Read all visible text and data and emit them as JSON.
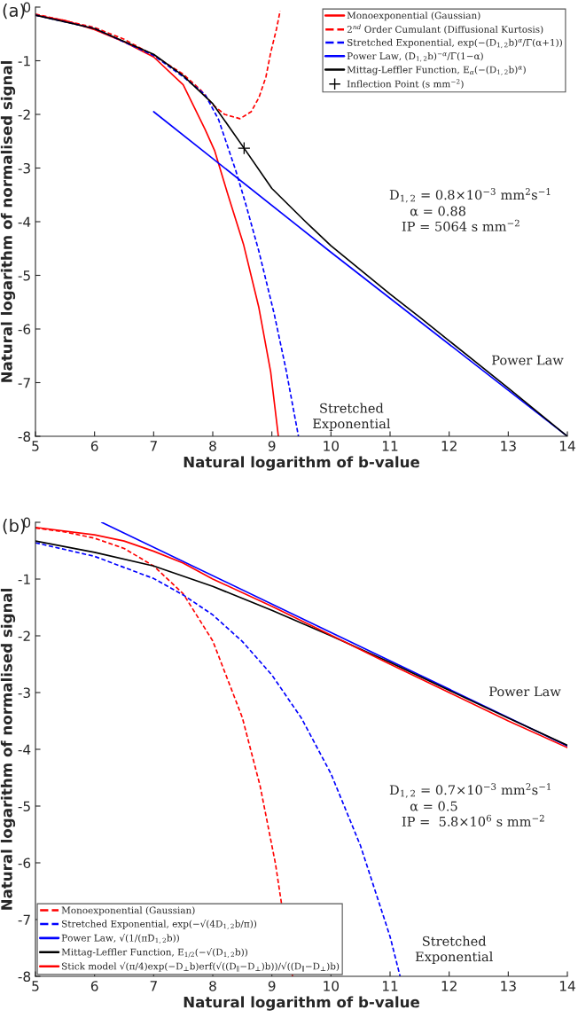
{
  "chart_data": [
    {
      "type": "line",
      "title": "(a)",
      "xlabel": "Natural logarithm of b-value",
      "ylabel": "Natural logarithm of normalised signal",
      "xlim": [
        5,
        14
      ],
      "ylim": [
        -8,
        0
      ],
      "xticks": [
        5,
        6,
        7,
        8,
        9,
        10,
        11,
        12,
        13,
        14
      ],
      "yticks": [
        0,
        -1,
        -2,
        -3,
        -4,
        -5,
        -6,
        -7,
        -8
      ],
      "grid": false,
      "legend": "top right",
      "series": [
        {
          "name": "Monoexponential (Gaussian)",
          "color": "#ff0000",
          "line_style": "solid",
          "x": [
            5,
            5.5,
            6,
            6.5,
            7,
            7.5,
            7.87,
            8.03,
            8.26,
            8.52,
            8.78,
            8.98,
            9.11
          ],
          "values": [
            -0.15,
            -0.25,
            -0.42,
            -0.65,
            -0.93,
            -1.45,
            -2.28,
            -2.67,
            -3.51,
            -4.42,
            -5.6,
            -6.8,
            -8
          ]
        },
        {
          "name": "2$^{nd}$ Order Cumulant (Diffusional Kurtosis)",
          "color": "#ff0000",
          "line_style": "dashed",
          "x": [
            5,
            6,
            6.5,
            7,
            7.5,
            7.8,
            8.0,
            8.2,
            8.46,
            8.65,
            8.78,
            8.9,
            8.98,
            9.08,
            9.14
          ],
          "values": [
            -0.13,
            -0.38,
            -0.6,
            -0.9,
            -1.25,
            -1.55,
            -1.82,
            -2.0,
            -2.08,
            -1.95,
            -1.69,
            -1.3,
            -0.85,
            -0.4,
            -0.07
          ]
        },
        {
          "name": "Stretched Exponential, exp(−(D$_{1,2}$b)$^{α}$/Γ(α+1))",
          "color": "#0000ff",
          "line_style": "dashed",
          "x": [
            5,
            6,
            7,
            7.5,
            7.87,
            8.1,
            8.39,
            8.55,
            8.78,
            9.04,
            9.24,
            9.45
          ],
          "values": [
            -0.15,
            -0.4,
            -0.9,
            -1.3,
            -1.63,
            -2.1,
            -3.05,
            -3.64,
            -4.55,
            -5.72,
            -6.76,
            -8
          ]
        },
        {
          "name": "Power Law, (D$_{1,2}$b)$^{−α}$/Γ(1−α)",
          "color": "#0000ff",
          "line_style": "solid",
          "x": [
            7,
            10,
            14
          ],
          "values": [
            -1.95,
            -4.57,
            -8
          ]
        },
        {
          "name": "Mittag-Leffler Function, E$_{α}$(−(D$_{1,2}$b)$^{α}$)",
          "color": "#000000",
          "line_style": "solid",
          "x": [
            5,
            6,
            7,
            7.5,
            8.0,
            8.53,
            9.0,
            9.57,
            10.0,
            10.5,
            11,
            11.5,
            12,
            13,
            14
          ],
          "values": [
            -0.15,
            -0.4,
            -0.88,
            -1.28,
            -1.8,
            -2.63,
            -3.38,
            -4.0,
            -4.45,
            -4.9,
            -5.35,
            -5.78,
            -6.22,
            -7.1,
            -8
          ]
        },
        {
          "name": "Inflection Point (s mm$^{−2}$)",
          "type": "scatter",
          "marker": "cross",
          "color": "#000000",
          "x": [
            8.53
          ],
          "values": [
            -2.63
          ]
        }
      ],
      "annotations": [
        "Power Law",
        "Stretched\nExponential",
        "D$_{1,2}$ = 0.8×10$^{−3}$ mm$^{2}$s$^{−1}$\n     α = 0.88\n   IP = 5064 s mm$^{−2}$"
      ]
    },
    {
      "type": "line",
      "title": "(b)",
      "xlabel": "Natural logarithm of b-value",
      "ylabel": "Natural logarithm of normalised signal",
      "xlim": [
        5,
        14
      ],
      "ylim": [
        -8,
        0
      ],
      "xticks": [
        5,
        6,
        7,
        8,
        9,
        10,
        11,
        12,
        13,
        14
      ],
      "yticks": [
        0,
        -1,
        -2,
        -3,
        -4,
        -5,
        -6,
        -7,
        -8
      ],
      "grid": false,
      "legend": "bottom left",
      "series": [
        {
          "name": "Monoexponential (Gaussian)",
          "color": "#ff0000",
          "line_style": "dashed",
          "x": [
            5,
            5.5,
            6,
            6.5,
            7,
            7.5,
            8,
            8.5,
            8.8,
            9.06,
            9.2,
            9.35
          ],
          "values": [
            -0.1,
            -0.17,
            -0.28,
            -0.46,
            -0.77,
            -1.26,
            -2.09,
            -3.44,
            -4.64,
            -6.01,
            null,
            -8
          ]
        },
        {
          "name": "Stretched Exponential, exp(−√(4D$_{1,2}$b/π))",
          "color": "#0000ff",
          "line_style": "dashed",
          "x": [
            5,
            6,
            7,
            7.5,
            8,
            8.5,
            9,
            9.5,
            10,
            10.5,
            11,
            11.17
          ],
          "values": [
            -0.36,
            -0.6,
            -0.99,
            -1.28,
            -1.63,
            -2.1,
            -2.69,
            -3.45,
            -4.43,
            -5.7,
            -7.3,
            -8
          ]
        },
        {
          "name": "Power Law, √(1/(πD$_{1,2}$b))",
          "color": "#0000ff",
          "line_style": "solid",
          "x": [
            6.12,
            10,
            14
          ],
          "values": [
            0,
            -1.94,
            -3.94
          ]
        },
        {
          "name": "Mittag-Leffler Function, E$_{1/2}$(−√(D$_{1,2}$b))",
          "color": "#000000",
          "line_style": "solid",
          "x": [
            5,
            6,
            7,
            8,
            9,
            10,
            11,
            12,
            13,
            14
          ],
          "values": [
            -0.33,
            -0.53,
            -0.77,
            -1.13,
            -1.55,
            -2.0,
            -2.47,
            -2.96,
            -3.45,
            -3.93
          ]
        },
        {
          "name": "Stick model √(π/4)exp(−D$_{⊥}$b)erf(√((D$_{∥}$−D$_{⊥}$)b))/√((D$_{∥}$−D$_{⊥}$)b)",
          "color": "#ff0000",
          "line_style": "solid",
          "x": [
            5,
            6,
            6.5,
            7,
            7.5,
            8,
            9,
            10,
            11,
            12,
            13,
            14
          ],
          "values": [
            -0.09,
            -0.22,
            -0.33,
            -0.51,
            -0.72,
            -1.0,
            -1.48,
            -1.99,
            -2.5,
            -3.0,
            -3.5,
            -3.97
          ]
        }
      ],
      "annotations": [
        "Power Law",
        "Stretched\nExponential",
        "D$_{1,2}$ = 0.7×10$^{−3}$ mm$^{2}$s$^{−1}$\n     α = 0.5\n   IP =  5.8×10$^{6}$ s mm$^{−2}$"
      ]
    }
  ]
}
